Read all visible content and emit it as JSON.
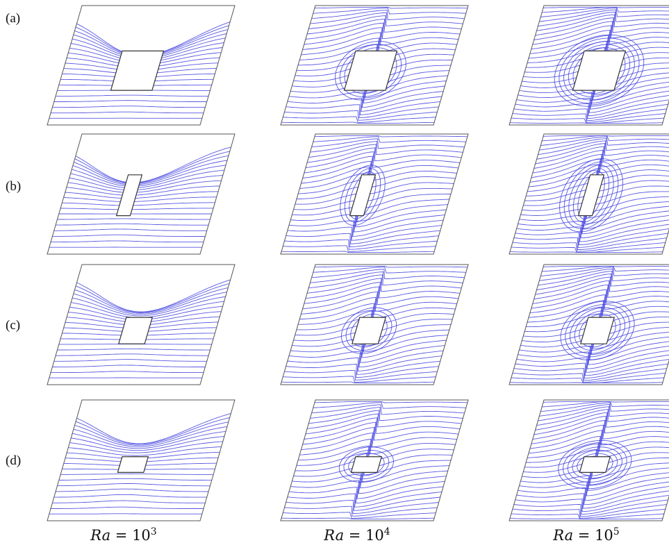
{
  "rows": [
    {
      "label": "(a)",
      "obstacle": "large square"
    },
    {
      "label": "(b)",
      "obstacle": "tall rectangle"
    },
    {
      "label": "(c)",
      "obstacle": "small square"
    },
    {
      "label": "(d)",
      "obstacle": "wide rectangle"
    }
  ],
  "columns": [
    {
      "prefix": "Ra",
      "equals": " = ",
      "base": "10",
      "exponent": "3"
    },
    {
      "prefix": "Ra",
      "equals": " = ",
      "base": "10",
      "exponent": "4"
    },
    {
      "prefix": "Ra",
      "equals": " = ",
      "base": "10",
      "exponent": "5"
    }
  ],
  "colors": {
    "isotherm": "#3b3bdd",
    "frame": "#555555",
    "obstacle": "#333333"
  }
}
